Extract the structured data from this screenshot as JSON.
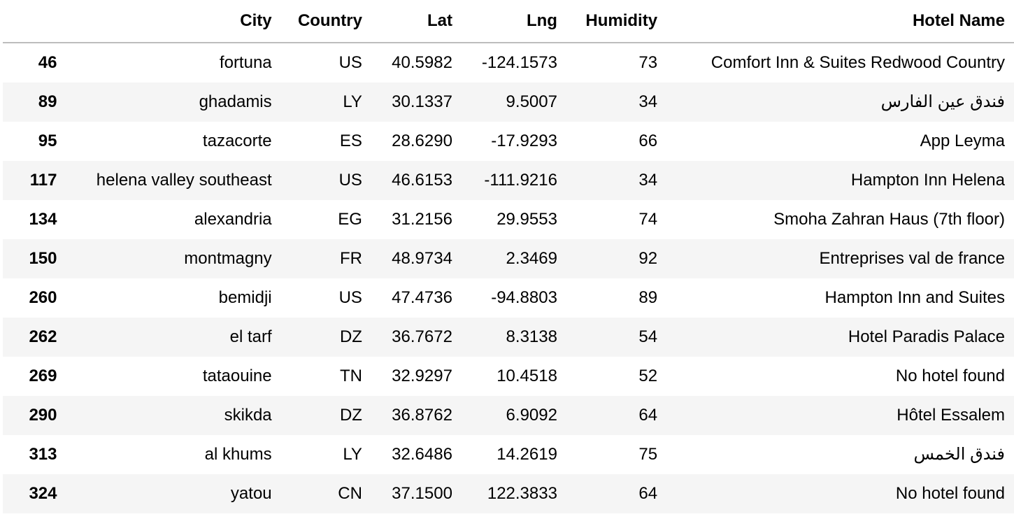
{
  "table": {
    "columns": [
      "",
      "City",
      "Country",
      "Lat",
      "Lng",
      "Humidity",
      "Hotel Name"
    ],
    "rows": [
      {
        "index": "46",
        "city": "fortuna",
        "country": "US",
        "lat": "40.5982",
        "lng": "-124.1573",
        "humidity": "73",
        "hotel": "Comfort Inn & Suites Redwood Country"
      },
      {
        "index": "89",
        "city": "ghadamis",
        "country": "LY",
        "lat": "30.1337",
        "lng": "9.5007",
        "humidity": "34",
        "hotel": "فندق عين الفارس"
      },
      {
        "index": "95",
        "city": "tazacorte",
        "country": "ES",
        "lat": "28.6290",
        "lng": "-17.9293",
        "humidity": "66",
        "hotel": "App Leyma"
      },
      {
        "index": "117",
        "city": "helena valley southeast",
        "country": "US",
        "lat": "46.6153",
        "lng": "-111.9216",
        "humidity": "34",
        "hotel": "Hampton Inn Helena"
      },
      {
        "index": "134",
        "city": "alexandria",
        "country": "EG",
        "lat": "31.2156",
        "lng": "29.9553",
        "humidity": "74",
        "hotel": "Smoha Zahran Haus (7th floor)"
      },
      {
        "index": "150",
        "city": "montmagny",
        "country": "FR",
        "lat": "48.9734",
        "lng": "2.3469",
        "humidity": "92",
        "hotel": "Entreprises val de france"
      },
      {
        "index": "260",
        "city": "bemidji",
        "country": "US",
        "lat": "47.4736",
        "lng": "-94.8803",
        "humidity": "89",
        "hotel": "Hampton Inn and Suites"
      },
      {
        "index": "262",
        "city": "el tarf",
        "country": "DZ",
        "lat": "36.7672",
        "lng": "8.3138",
        "humidity": "54",
        "hotel": "Hotel Paradis Palace"
      },
      {
        "index": "269",
        "city": "tataouine",
        "country": "TN",
        "lat": "32.9297",
        "lng": "10.4518",
        "humidity": "52",
        "hotel": "No hotel found"
      },
      {
        "index": "290",
        "city": "skikda",
        "country": "DZ",
        "lat": "36.8762",
        "lng": "6.9092",
        "humidity": "64",
        "hotel": "Hôtel Essalem"
      },
      {
        "index": "313",
        "city": "al khums",
        "country": "LY",
        "lat": "32.6486",
        "lng": "14.2619",
        "humidity": "75",
        "hotel": "فندق الخمس"
      },
      {
        "index": "324",
        "city": "yatou",
        "country": "CN",
        "lat": "37.1500",
        "lng": "122.3833",
        "humidity": "64",
        "hotel": "No hotel found"
      }
    ]
  }
}
